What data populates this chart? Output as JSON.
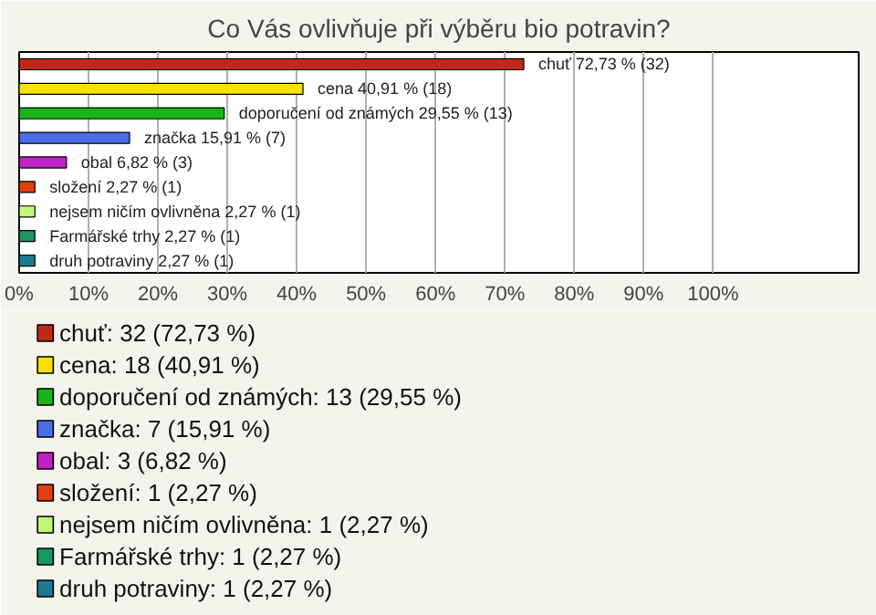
{
  "chart_data": {
    "type": "bar",
    "orientation": "horizontal",
    "title": "Co Vás ovlivňuje při výběru bio potravin?",
    "categories": [
      null,
      null,
      null,
      null,
      null,
      null,
      null,
      null,
      null
    ],
    "series": [
      {
        "name": "chuť: 32 (72,73 %)",
        "color": "#c0281c",
        "values": [
          72.73,
          null,
          null,
          null,
          null,
          null,
          null,
          null,
          null
        ],
        "value_labels": [
          "chuť 72,73 % (32)",
          null,
          null,
          null,
          null,
          null,
          null,
          null,
          null
        ]
      },
      {
        "name": "cena: 18 (40,91 %)",
        "color": "#f8e000",
        "values": [
          null,
          40.91,
          null,
          null,
          null,
          null,
          null,
          null,
          null
        ],
        "value_labels": [
          null,
          "cena 40,91 % (18)",
          null,
          null,
          null,
          null,
          null,
          null,
          null
        ]
      },
      {
        "name": "doporučení od známých: 13 (29,55 %)",
        "color": "#18b418",
        "values": [
          null,
          null,
          29.55,
          null,
          null,
          null,
          null,
          null,
          null
        ],
        "value_labels": [
          null,
          null,
          "doporučení od známých 29,55 % (13)",
          null,
          null,
          null,
          null,
          null,
          null
        ]
      },
      {
        "name": "značka: 7 (15,91 %)",
        "color": "#4a6ee8",
        "values": [
          null,
          null,
          null,
          15.91,
          null,
          null,
          null,
          null,
          null
        ],
        "value_labels": [
          null,
          null,
          null,
          "značka 15,91 % (7)",
          null,
          null,
          null,
          null,
          null
        ]
      },
      {
        "name": "obal: 3 (6,82 %)",
        "color": "#c020c8",
        "values": [
          null,
          null,
          null,
          null,
          6.82,
          null,
          null,
          null,
          null
        ],
        "value_labels": [
          null,
          null,
          null,
          null,
          "obal 6,82 % (3)",
          null,
          null,
          null,
          null
        ]
      },
      {
        "name": "složení: 1 (2,27 %)",
        "color": "#e04010",
        "values": [
          null,
          null,
          null,
          null,
          null,
          2.27,
          null,
          null,
          null
        ],
        "value_labels": [
          null,
          null,
          null,
          null,
          null,
          "složení 2,27 % (1)",
          null,
          null,
          null
        ]
      },
      {
        "name": "nejsem ničím ovlivněna: 1 (2,27 %)",
        "color": "#c0f878",
        "values": [
          null,
          null,
          null,
          null,
          null,
          null,
          2.27,
          null,
          null
        ],
        "value_labels": [
          null,
          null,
          null,
          null,
          null,
          null,
          "nejsem ničím ovlivněna 2,27 % (1)",
          null,
          null
        ]
      },
      {
        "name": "Farmářské trhy: 1 (2,27 %)",
        "color": "#189860",
        "values": [
          null,
          null,
          null,
          null,
          null,
          null,
          null,
          2.27,
          null
        ],
        "value_labels": [
          null,
          null,
          null,
          null,
          null,
          null,
          null,
          "Farmářské trhy 2,27 % (1)",
          null
        ]
      },
      {
        "name": "druh potraviny: 1 (2,27 %)",
        "color": "#207890",
        "values": [
          null,
          null,
          null,
          null,
          null,
          null,
          null,
          null,
          2.27
        ],
        "value_labels": [
          null,
          null,
          null,
          null,
          null,
          null,
          null,
          null,
          "druh potraviny 2,27 % (1)"
        ]
      }
    ],
    "xlim": [
      0,
      121
    ],
    "xticks": [
      {
        "value": 0,
        "label": "0%"
      },
      {
        "value": 10,
        "label": "10%"
      },
      {
        "value": 20,
        "label": "20%"
      },
      {
        "value": 30,
        "label": "30%"
      },
      {
        "value": 40,
        "label": "40%"
      },
      {
        "value": 50,
        "label": "50%"
      },
      {
        "value": 60,
        "label": "60%"
      },
      {
        "value": 70,
        "label": "70%"
      },
      {
        "value": 80,
        "label": "80%"
      },
      {
        "value": 90,
        "label": "90%"
      },
      {
        "value": 100,
        "label": "100%"
      }
    ],
    "grid": "x",
    "legend": "bottom",
    "tick_labels": "x"
  }
}
